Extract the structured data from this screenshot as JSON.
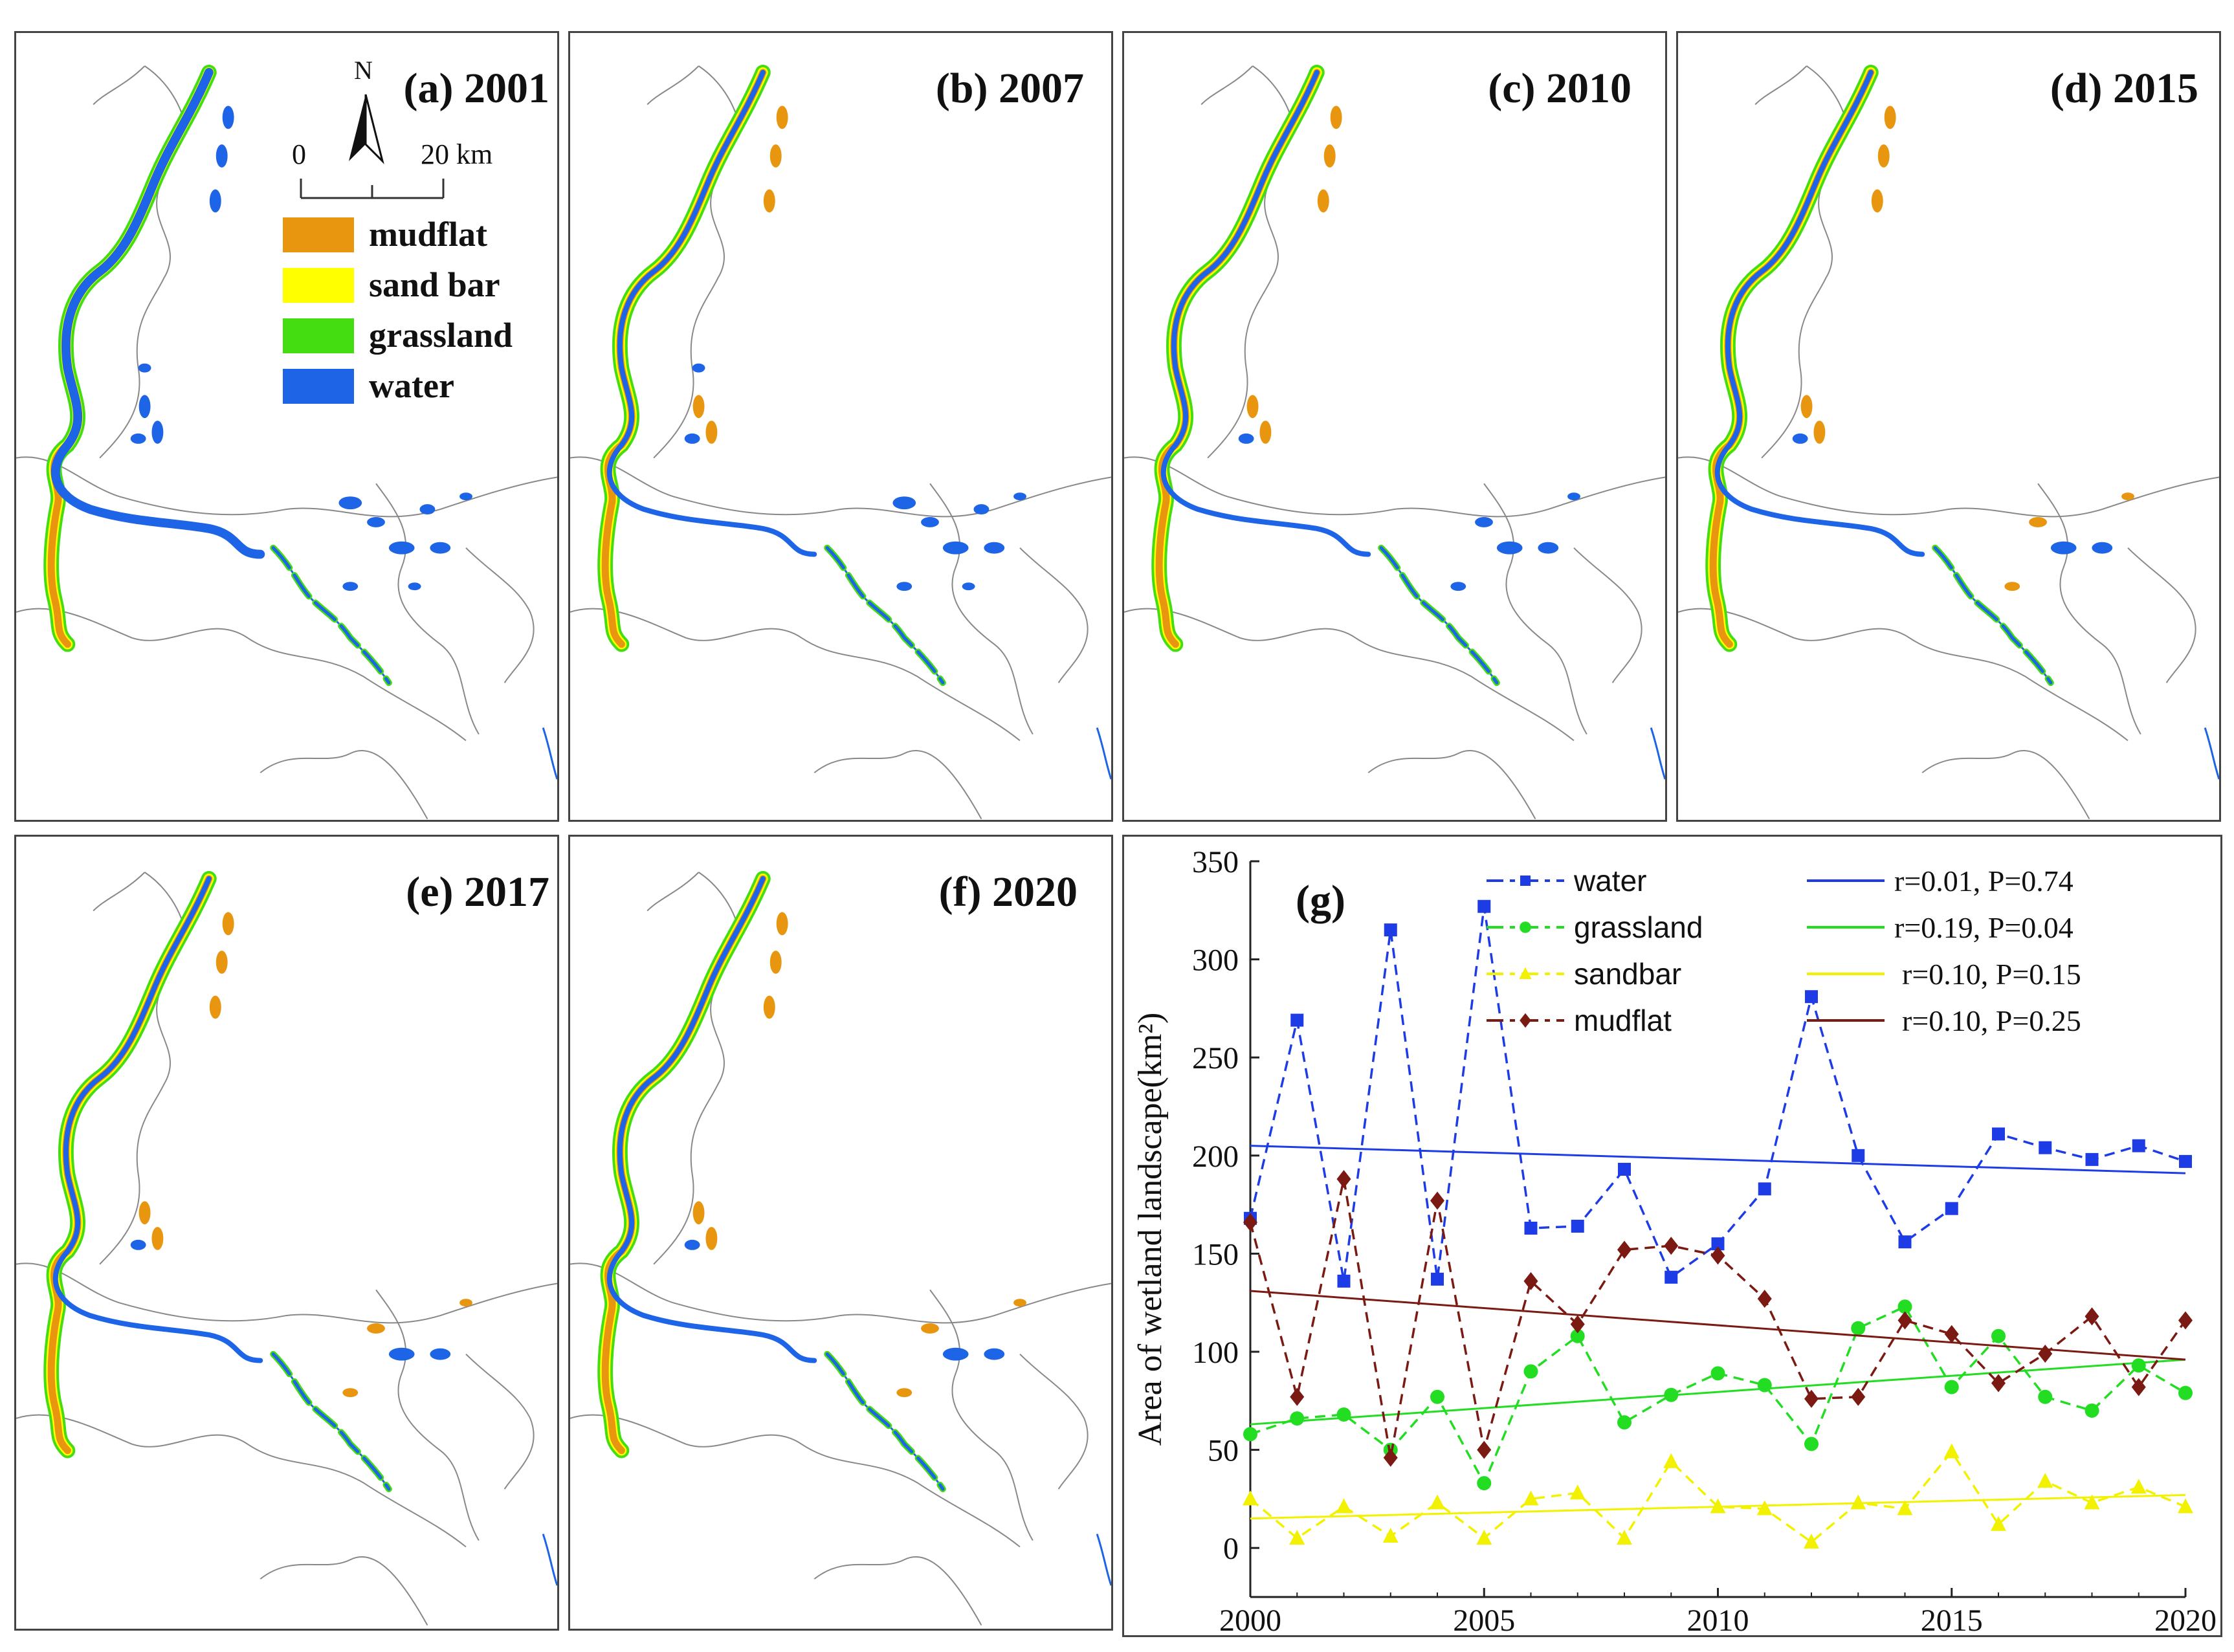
{
  "legend": {
    "north_label": "N",
    "scale_start": "0",
    "scale_end": "20 km",
    "items": [
      {
        "label": "mudflat",
        "color": "#E8950F"
      },
      {
        "label": "sand bar",
        "color": "#FFFF00"
      },
      {
        "label": "grassland",
        "color": "#44DD11"
      },
      {
        "label": "water",
        "color": "#1E64E6"
      }
    ]
  },
  "maps": [
    {
      "label": "(a) 2001"
    },
    {
      "label": "(b) 2007"
    },
    {
      "label": "(c) 2010"
    },
    {
      "label": "(d) 2015"
    },
    {
      "label": "(e) 2017"
    },
    {
      "label": "(f) 2020"
    }
  ],
  "chart_data": {
    "type": "line",
    "panel_label": "(g)",
    "ylabel": "Area of wetland landscape(km²)",
    "xlabel": "",
    "xlim": [
      2000,
      2020
    ],
    "ylim": [
      -25,
      350
    ],
    "x_ticks": [
      2000,
      2005,
      2010,
      2015,
      2020
    ],
    "y_ticks": [
      0,
      50,
      100,
      150,
      200,
      250,
      300,
      350
    ],
    "x": [
      2000,
      2001,
      2002,
      2003,
      2004,
      2005,
      2006,
      2007,
      2008,
      2009,
      2010,
      2011,
      2012,
      2013,
      2014,
      2015,
      2016,
      2017,
      2018,
      2019,
      2020
    ],
    "series": [
      {
        "name": "water",
        "color": "#1E3CE6",
        "marker": "square",
        "values": [
          168,
          269,
          136,
          315,
          137,
          327,
          163,
          164,
          193,
          138,
          155,
          183,
          281,
          200,
          156,
          173,
          211,
          204,
          198,
          205,
          197
        ],
        "fit": {
          "label": "r=0.01, P=0.74",
          "start": 205,
          "end": 191
        }
      },
      {
        "name": "grassland",
        "color": "#22DD22",
        "marker": "circle",
        "values": [
          58,
          66,
          68,
          50,
          77,
          33,
          90,
          108,
          64,
          78,
          89,
          83,
          53,
          112,
          123,
          82,
          108,
          77,
          70,
          93,
          79
        ],
        "fit": {
          "label": "r=0.19, P=0.04",
          "start": 63,
          "end": 96
        }
      },
      {
        "name": "sandbar",
        "color": "#F2F200",
        "marker": "triangle",
        "values": [
          25,
          5,
          21,
          6,
          23,
          5,
          25,
          28,
          5,
          44,
          21,
          20,
          3,
          23,
          20,
          49,
          12,
          34,
          23,
          31,
          21
        ],
        "fit": {
          "label": "r=0.10, P=0.15",
          "start": 15,
          "end": 27
        }
      },
      {
        "name": "mudflat",
        "color": "#7B1A12",
        "marker": "diamond",
        "values": [
          166,
          77,
          188,
          46,
          177,
          50,
          136,
          114,
          152,
          154,
          149,
          127,
          76,
          77,
          116,
          109,
          84,
          99,
          118,
          82,
          116
        ],
        "fit": {
          "label": "r=0.10, P=0.25",
          "start": 131,
          "end": 96
        }
      }
    ]
  }
}
